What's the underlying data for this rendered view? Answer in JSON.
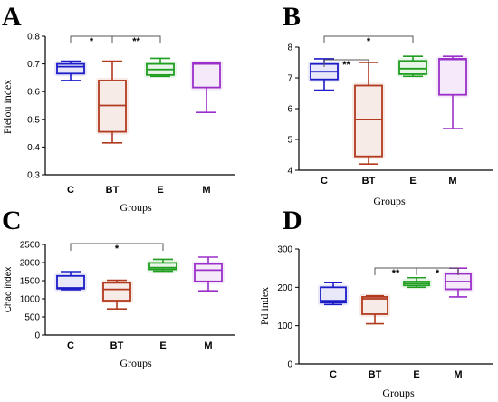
{
  "chart_data": [
    {
      "type": "box",
      "panel": "A",
      "ylabel": "Pielou index",
      "xlabel": "Groups",
      "ylim": [
        0.3,
        0.8
      ],
      "yticks": [
        "0.3",
        "0.4",
        "0.5",
        "0.6",
        "0.7",
        "0.8"
      ],
      "categories": [
        "C",
        "BT",
        "E",
        "M"
      ],
      "colors": [
        "#1c1cc8",
        "#b23a1e",
        "#1f9e1f",
        "#9b2fc9"
      ],
      "boxes": [
        {
          "group": "C",
          "min": 0.64,
          "q1": 0.665,
          "median": 0.69,
          "q3": 0.7,
          "max": 0.71
        },
        {
          "group": "BT",
          "min": 0.415,
          "q1": 0.455,
          "median": 0.55,
          "q3": 0.64,
          "max": 0.71
        },
        {
          "group": "E",
          "min": 0.655,
          "q1": 0.66,
          "median": 0.68,
          "q3": 0.7,
          "max": 0.72
        },
        {
          "group": "M",
          "min": 0.525,
          "q1": 0.615,
          "median": 0.7,
          "q3": 0.703,
          "max": 0.705
        }
      ],
      "significance": [
        {
          "from": "C",
          "to": "BT",
          "label": "*"
        },
        {
          "from": "BT",
          "to": "E",
          "label": "**"
        }
      ]
    },
    {
      "type": "box",
      "panel": "B",
      "ylabel": "",
      "xlabel": "Groups",
      "ylim": [
        4,
        8
      ],
      "yticks": [
        "4",
        "5",
        "6",
        "7",
        "8"
      ],
      "categories": [
        "C",
        "BT",
        "E",
        "M"
      ],
      "colors": [
        "#1c1cc8",
        "#b23a1e",
        "#1f9e1f",
        "#9b2fc9"
      ],
      "boxes": [
        {
          "group": "C",
          "min": 6.6,
          "q1": 6.95,
          "median": 7.2,
          "q3": 7.45,
          "max": 7.62
        },
        {
          "group": "BT",
          "min": 4.2,
          "q1": 4.45,
          "median": 5.65,
          "q3": 6.75,
          "max": 7.5
        },
        {
          "group": "E",
          "min": 7.05,
          "q1": 7.12,
          "median": 7.3,
          "q3": 7.55,
          "max": 7.7
        },
        {
          "group": "M",
          "min": 5.35,
          "q1": 6.45,
          "median": 7.6,
          "q3": 7.62,
          "max": 7.7
        }
      ],
      "significance": [
        {
          "from": "C",
          "to": "BT",
          "label": "**"
        },
        {
          "from": "C",
          "to": "E",
          "label": "*"
        }
      ]
    },
    {
      "type": "box",
      "panel": "C",
      "ylabel": "Chao index",
      "xlabel": "Groups",
      "ylim": [
        0,
        2500
      ],
      "yticks": [
        "0",
        "500",
        "1000",
        "1500",
        "2000",
        "2500"
      ],
      "categories": [
        "C",
        "BT",
        "E",
        "M"
      ],
      "colors": [
        "#1c1cc8",
        "#b23a1e",
        "#1f9e1f",
        "#9b2fc9"
      ],
      "boxes": [
        {
          "group": "C",
          "min": 1250,
          "q1": 1280,
          "median": 1300,
          "q3": 1630,
          "max": 1750
        },
        {
          "group": "BT",
          "min": 720,
          "q1": 950,
          "median": 1260,
          "q3": 1440,
          "max": 1510
        },
        {
          "group": "E",
          "min": 1760,
          "q1": 1810,
          "median": 1860,
          "q3": 1990,
          "max": 2090
        },
        {
          "group": "M",
          "min": 1220,
          "q1": 1480,
          "median": 1790,
          "q3": 1960,
          "max": 2150
        }
      ],
      "significance": [
        {
          "from": "C",
          "to": "E",
          "label": "*"
        }
      ]
    },
    {
      "type": "box",
      "panel": "D",
      "ylabel": "Pd index",
      "xlabel": "Groups",
      "ylim": [
        0,
        300
      ],
      "yticks": [
        "0",
        "100",
        "200",
        "300"
      ],
      "categories": [
        "C",
        "BT",
        "E",
        "M"
      ],
      "colors": [
        "#1c1cc8",
        "#b23a1e",
        "#1f9e1f",
        "#9b2fc9"
      ],
      "boxes": [
        {
          "group": "C",
          "min": 155,
          "q1": 160,
          "median": 165,
          "q3": 200,
          "max": 212
        },
        {
          "group": "BT",
          "min": 105,
          "q1": 130,
          "median": 170,
          "q3": 175,
          "max": 178
        },
        {
          "group": "E",
          "min": 200,
          "q1": 205,
          "median": 210,
          "q3": 215,
          "max": 225
        },
        {
          "group": "M",
          "min": 175,
          "q1": 195,
          "median": 215,
          "q3": 235,
          "max": 250
        }
      ],
      "significance": [
        {
          "from": "BT",
          "to": "E",
          "label": "**"
        },
        {
          "from": "E",
          "to": "M",
          "label": "*"
        }
      ]
    }
  ]
}
